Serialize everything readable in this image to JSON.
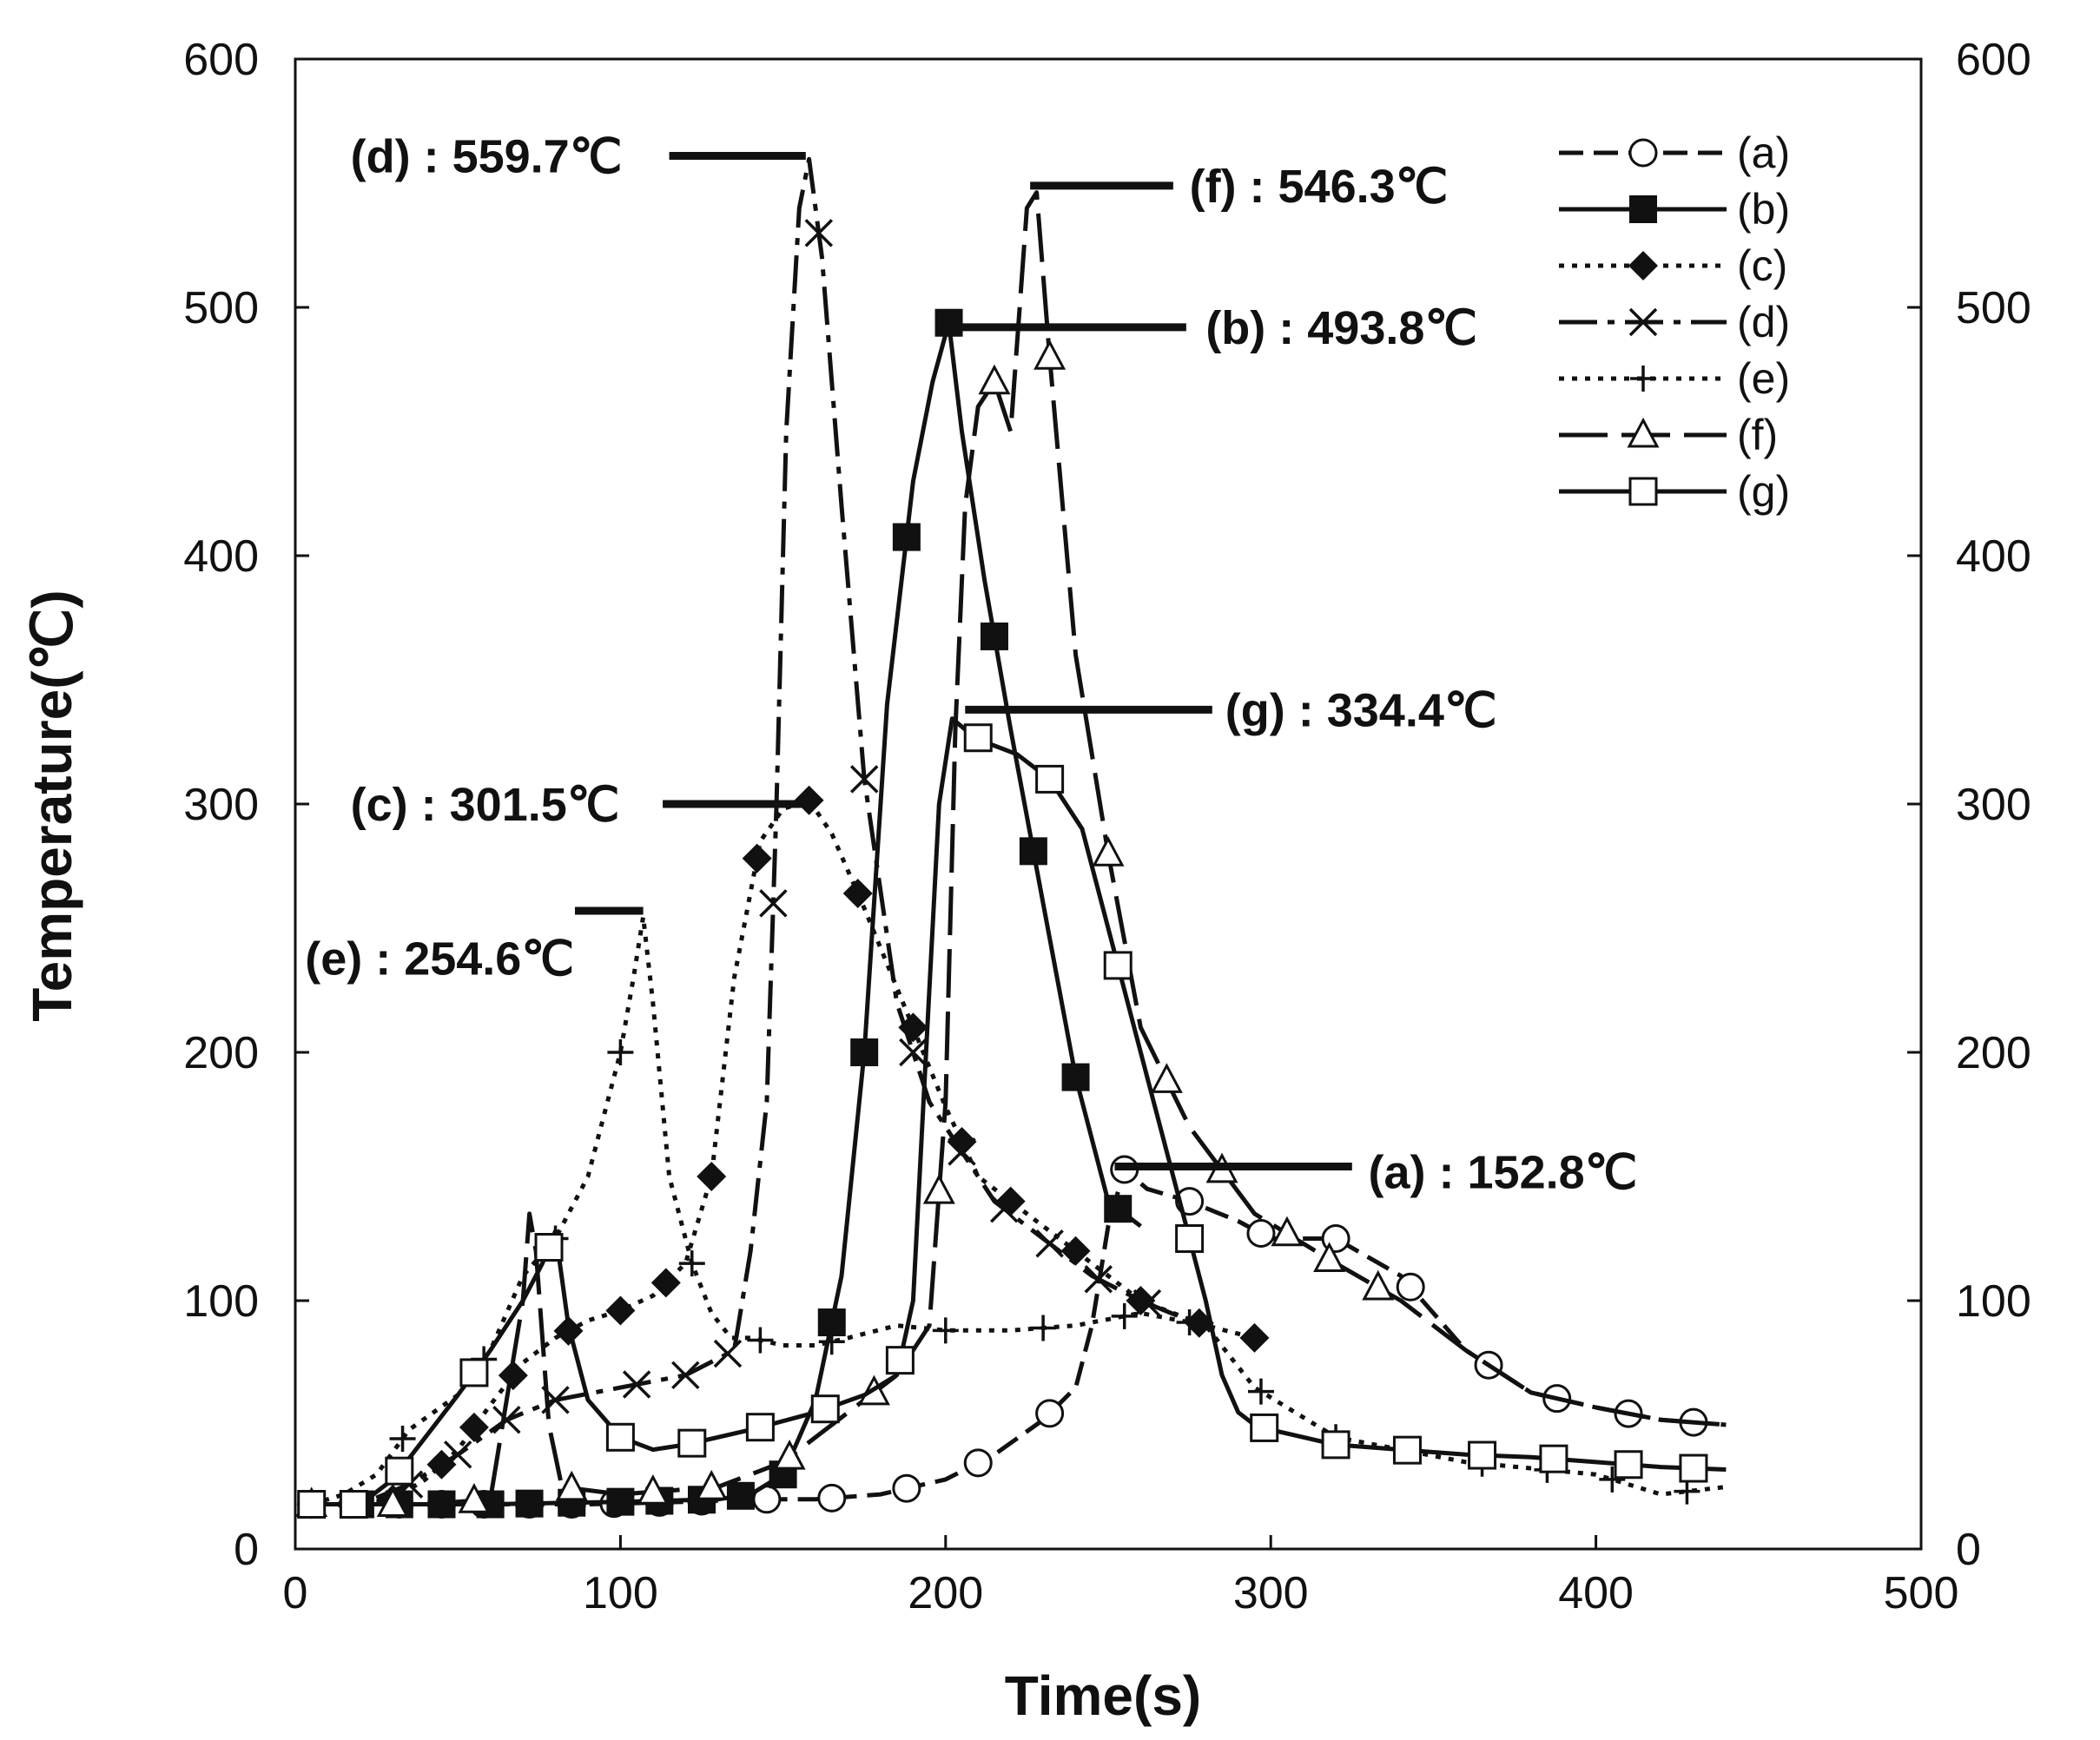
{
  "chart_data": {
    "type": "line",
    "title": "",
    "xlabel": "Time(s)",
    "ylabel": "Temperature(℃)",
    "xlim": [
      0,
      500
    ],
    "ylim": [
      0,
      600
    ],
    "y2lim": [
      0,
      600
    ],
    "x_ticks": [
      0,
      100,
      200,
      300,
      400,
      500
    ],
    "y_ticks": [
      0,
      100,
      200,
      300,
      400,
      500,
      600
    ],
    "grid": false,
    "legend_position": "top-right",
    "series": [
      {
        "name": "(a)",
        "marker": "circle",
        "dash": "dashed",
        "x": [
          5,
          30,
          60,
          90,
          120,
          140,
          160,
          180,
          200,
          215,
          230,
          240,
          245,
          250,
          255,
          262,
          275,
          290,
          300,
          320,
          340,
          360,
          380,
          400,
          420,
          440
        ],
        "y": [
          18,
          18,
          18,
          18,
          19,
          20,
          20,
          22,
          28,
          38,
          52,
          65,
          90,
          130,
          152.8,
          145,
          140,
          132,
          125,
          125,
          110,
          80,
          63,
          57,
          52,
          50
        ],
        "markers_x": [
          5,
          18,
          32,
          45,
          58,
          72,
          85,
          98,
          112,
          125,
          145,
          165,
          188,
          210,
          232,
          255,
          275,
          297,
          320,
          343,
          367,
          388,
          410,
          430
        ],
        "peak_label": "(a) : 152.8℃"
      },
      {
        "name": "(b)",
        "marker": "filled-square",
        "dash": "solid",
        "x": [
          5,
          60,
          100,
          130,
          140,
          150,
          160,
          168,
          175,
          182,
          190,
          196,
          201,
          205,
          212,
          220,
          230,
          240,
          250,
          260
        ],
        "y": [
          18,
          18,
          19,
          20,
          22,
          30,
          60,
          110,
          200,
          340,
          430,
          470,
          493.8,
          450,
          390,
          330,
          260,
          190,
          140,
          130
        ],
        "markers_x": [
          5,
          20,
          32,
          45,
          60,
          72,
          85,
          100,
          112,
          125,
          137,
          150,
          165,
          175,
          188,
          201,
          215,
          227,
          240,
          253
        ],
        "peak_label": "(b) : 493.8℃"
      },
      {
        "name": "(c)",
        "marker": "filled-diamond",
        "dash": "dotted",
        "x": [
          5,
          20,
          30,
          40,
          50,
          60,
          70,
          80,
          90,
          100,
          110,
          120,
          128,
          135,
          143,
          150,
          158,
          165,
          175,
          190,
          200,
          210,
          220,
          240,
          260,
          280,
          295
        ],
        "y": [
          18,
          18,
          20,
          28,
          40,
          58,
          75,
          85,
          92,
          96,
          102,
          115,
          150,
          230,
          285,
          298,
          301.5,
          288,
          258,
          210,
          178,
          150,
          140,
          120,
          100,
          90,
          85
        ],
        "markers_x": [
          5,
          17,
          30,
          45,
          55,
          67,
          84,
          100,
          114,
          128,
          142,
          158,
          173,
          190,
          205,
          220,
          240,
          260,
          278,
          295
        ],
        "peak_label": "(c) : 301.5℃"
      },
      {
        "name": "(d)",
        "marker": "x",
        "dash": "dash-dot",
        "x": [
          5,
          20,
          35,
          50,
          65,
          80,
          100,
          120,
          135,
          140,
          145,
          148,
          151,
          155,
          158,
          162,
          168,
          175,
          185,
          195,
          205,
          215,
          230,
          245,
          260,
          275
        ],
        "y": [
          18,
          18,
          26,
          38,
          52,
          60,
          65,
          70,
          80,
          120,
          180,
          300,
          450,
          540,
          559.7,
          520,
          420,
          310,
          220,
          180,
          160,
          140,
          125,
          110,
          100,
          92
        ],
        "markers_x": [
          5,
          20,
          35,
          50,
          65,
          80,
          105,
          120,
          133,
          147,
          161,
          175,
          190,
          205,
          218,
          232,
          247,
          262
        ],
        "peak_label": "(d) : 559.7℃"
      },
      {
        "name": "(e)",
        "marker": "plus",
        "dash": "dotted",
        "x": [
          5,
          15,
          25,
          35,
          50,
          60,
          70,
          80,
          90,
          95,
          100,
          104,
          107,
          110,
          115,
          122,
          128,
          134,
          140,
          150,
          160,
          170,
          185,
          200,
          220,
          240,
          260,
          280,
          295,
          320,
          360,
          400,
          420,
          440
        ],
        "y": [
          18,
          22,
          30,
          48,
          62,
          80,
          110,
          125,
          150,
          175,
          200,
          230,
          254.6,
          220,
          150,
          115,
          95,
          85,
          85,
          82,
          82,
          85,
          90,
          88,
          88,
          90,
          95,
          90,
          65,
          45,
          35,
          30,
          22,
          25
        ],
        "markers_x": [
          5,
          33,
          58,
          80,
          100,
          122,
          143,
          165,
          200,
          230,
          255,
          275,
          297,
          320,
          365,
          385,
          405,
          428
        ],
        "peak_label": "(e) : 254.6℃"
      },
      {
        "name": "(f)",
        "marker": "triangle",
        "dash": "long-dash",
        "x": [
          5,
          40,
          60,
          70,
          72,
          74,
          78,
          82,
          100,
          130,
          150,
          170,
          185,
          195,
          200,
          203,
          206,
          210,
          215,
          220,
          225,
          228,
          232,
          240,
          250,
          260,
          275,
          295,
          320,
          340,
          360,
          380,
          400,
          420,
          440
        ],
        "y": [
          18,
          18,
          20,
          100,
          135,
          120,
          50,
          25,
          22,
          25,
          35,
          55,
          70,
          90,
          180,
          330,
          420,
          460,
          470,
          450,
          540,
          546.3,
          480,
          360,
          280,
          210,
          170,
          135,
          115,
          100,
          80,
          63,
          57,
          52,
          50
        ],
        "markers_x": [
          5,
          30,
          55,
          85,
          110,
          128,
          152,
          178,
          198,
          215,
          232,
          250,
          268,
          285,
          305,
          318,
          333
        ],
        "peak_label": "(f) : 546.3℃"
      },
      {
        "name": "(g)",
        "marker": "square",
        "dash": "solid",
        "x": [
          5,
          20,
          30,
          40,
          50,
          60,
          70,
          76,
          80,
          84,
          90,
          100,
          110,
          120,
          140,
          160,
          175,
          185,
          190,
          194,
          198,
          202,
          206,
          212,
          222,
          232,
          242,
          252,
          262,
          272,
          280,
          285,
          290,
          295,
          300,
          320,
          340,
          360,
          380,
          400,
          420,
          440
        ],
        "y": [
          18,
          18,
          28,
          45,
          62,
          80,
          100,
          115,
          128,
          90,
          60,
          45,
          40,
          42,
          48,
          55,
          62,
          70,
          100,
          200,
          300,
          334.4,
          330,
          325,
          320,
          310,
          290,
          240,
          190,
          140,
          100,
          70,
          55,
          50,
          48,
          42,
          40,
          38,
          37,
          35,
          33,
          32
        ],
        "markers_x": [
          5,
          18,
          32,
          55,
          78,
          100,
          122,
          143,
          163,
          186,
          210,
          232,
          253,
          275,
          298,
          320,
          342,
          365,
          387,
          410,
          430
        ],
        "peak_label": "(g) : 334.4℃"
      }
    ],
    "annotations": [
      {
        "series": "(d)",
        "text": "(d) : 559.7℃",
        "line_x": [
          115,
          157
        ],
        "line_y": 561,
        "text_x": 17,
        "text_y": 561,
        "anchor": "start"
      },
      {
        "series": "(f)",
        "text": "(f) : 546.3℃",
        "line_x": [
          226,
          270
        ],
        "line_y": 549,
        "text_x": 275,
        "text_y": 549,
        "anchor": "start"
      },
      {
        "series": "(b)",
        "text": "(b) : 493.8℃",
        "line_x": [
          200,
          274
        ],
        "line_y": 492,
        "text_x": 280,
        "text_y": 492,
        "anchor": "start"
      },
      {
        "series": "(g)",
        "text": "(g) : 334.4℃",
        "line_x": [
          206,
          282
        ],
        "line_y": 338,
        "text_x": 286,
        "text_y": 338,
        "anchor": "start"
      },
      {
        "series": "(c)",
        "text": "(c) : 301.5℃",
        "line_x": [
          113,
          158
        ],
        "line_y": 300,
        "text_x": 17,
        "text_y": 300,
        "anchor": "start"
      },
      {
        "series": "(e)",
        "text": "(e) : 254.6℃",
        "line_x": [
          86,
          107
        ],
        "line_y": 257,
        "text_x": 3,
        "text_y": 238,
        "anchor": "start"
      },
      {
        "series": "(a)",
        "text": "(a) : 152.8℃",
        "line_x": [
          252,
          325
        ],
        "line_y": 154,
        "text_x": 330,
        "text_y": 152,
        "anchor": "start"
      }
    ]
  }
}
